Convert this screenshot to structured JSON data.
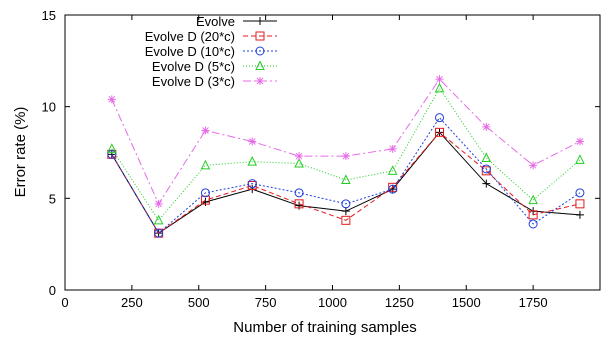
{
  "chart_data": {
    "type": "line",
    "title": "",
    "xlabel": "Number of training samples",
    "ylabel": "Error rate (%)",
    "xlim": [
      0,
      2000
    ],
    "ylim": [
      0,
      15
    ],
    "xticks": [
      0,
      250,
      500,
      750,
      1000,
      1250,
      1500,
      1750
    ],
    "yticks": [
      0,
      5,
      10,
      15
    ],
    "grid": false,
    "legend_position": "top-center",
    "x": [
      175,
      350,
      525,
      700,
      875,
      1050,
      1225,
      1400,
      1575,
      1750,
      1925
    ],
    "series": [
      {
        "name": "Evolve",
        "color": "#000000",
        "marker": "plus",
        "dash": "",
        "values": [
          7.4,
          3.1,
          4.8,
          5.5,
          4.6,
          4.3,
          5.5,
          8.6,
          5.8,
          4.3,
          4.1
        ]
      },
      {
        "name": "Evolve D (20*c)",
        "color": "#e41a1c",
        "marker": "square",
        "dash": "5,3",
        "values": [
          7.4,
          3.1,
          4.9,
          5.7,
          4.7,
          3.8,
          5.6,
          8.6,
          6.5,
          4.1,
          4.7
        ]
      },
      {
        "name": "Evolve D (10*c)",
        "color": "#1f3fdd",
        "marker": "circle",
        "dash": "2,2",
        "values": [
          7.4,
          3.1,
          5.3,
          5.8,
          5.3,
          4.7,
          5.5,
          9.4,
          6.6,
          3.6,
          5.3
        ]
      },
      {
        "name": "Evolve D (5*c)",
        "color": "#22cc22",
        "marker": "triangle",
        "dash": "1,2",
        "values": [
          7.7,
          3.8,
          6.8,
          7.0,
          6.9,
          6.0,
          6.5,
          11.0,
          7.2,
          4.9,
          7.1
        ]
      },
      {
        "name": "Evolve D (3*c)",
        "color": "#e66ae6",
        "marker": "star",
        "dash": "8,3,2,3",
        "values": [
          10.4,
          4.7,
          8.7,
          8.1,
          7.3,
          7.3,
          7.7,
          11.5,
          8.9,
          6.8,
          8.1
        ]
      }
    ]
  }
}
